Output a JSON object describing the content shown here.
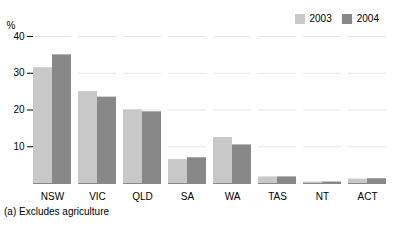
{
  "chart_data": {
    "type": "bar",
    "categories": [
      "NSW",
      "VIC",
      "QLD",
      "SA",
      "WA",
      "TAS",
      "NT",
      "ACT"
    ],
    "series": [
      {
        "name": "2003",
        "color": "#c8c8c8",
        "values": [
          31.5,
          25.0,
          20.0,
          6.5,
          12.5,
          1.8,
          0.4,
          1.2
        ]
      },
      {
        "name": "2004",
        "color": "#888888",
        "values": [
          35.0,
          23.5,
          19.5,
          7.0,
          10.5,
          1.8,
          0.4,
          1.3
        ]
      }
    ],
    "ylabel": "%",
    "ylim": [
      0,
      40
    ],
    "yticks": [
      10,
      20,
      30,
      40
    ],
    "grid": true,
    "legend": "upper right",
    "footnote": "(a) Excludes agriculture"
  }
}
